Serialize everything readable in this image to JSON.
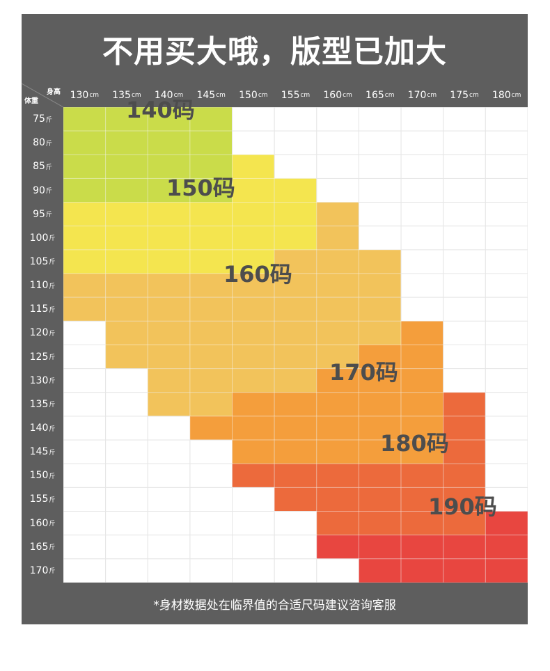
{
  "title": "不用买大哦，版型已加大",
  "corner": {
    "height_label": "身高",
    "weight_label": "体重"
  },
  "height_unit": "cm",
  "weight_unit": "斤",
  "heights": [
    "130",
    "135",
    "140",
    "145",
    "150",
    "155",
    "160",
    "165",
    "170",
    "175",
    "180"
  ],
  "weights": [
    "75",
    "80",
    "85",
    "90",
    "95",
    "100",
    "105",
    "110",
    "115",
    "120",
    "125",
    "130",
    "135",
    "140",
    "145",
    "150",
    "155",
    "160",
    "165",
    "170"
  ],
  "sizes": [
    {
      "label": "140码",
      "color": "#cadc4a"
    },
    {
      "label": "150码",
      "color": "#f4e54f"
    },
    {
      "label": "160码",
      "color": "#f2c35b"
    },
    {
      "label": "170码",
      "color": "#f49e3c"
    },
    {
      "label": "180码",
      "color": "#ec6a3c"
    },
    {
      "label": "190码",
      "color": "#e84640"
    }
  ],
  "size_grid": [
    [
      0,
      0,
      0,
      0,
      -1,
      -1,
      -1,
      -1,
      -1,
      -1,
      -1
    ],
    [
      0,
      0,
      0,
      0,
      -1,
      -1,
      -1,
      -1,
      -1,
      -1,
      -1
    ],
    [
      0,
      0,
      0,
      0,
      1,
      -1,
      -1,
      -1,
      -1,
      -1,
      -1
    ],
    [
      0,
      0,
      0,
      0,
      1,
      1,
      -1,
      -1,
      -1,
      -1,
      -1
    ],
    [
      1,
      1,
      1,
      1,
      1,
      1,
      2,
      -1,
      -1,
      -1,
      -1
    ],
    [
      1,
      1,
      1,
      1,
      1,
      1,
      2,
      -1,
      -1,
      -1,
      -1
    ],
    [
      1,
      1,
      1,
      1,
      1,
      2,
      2,
      2,
      -1,
      -1,
      -1
    ],
    [
      2,
      2,
      2,
      2,
      2,
      2,
      2,
      2,
      -1,
      -1,
      -1
    ],
    [
      2,
      2,
      2,
      2,
      2,
      2,
      2,
      2,
      -1,
      -1,
      -1
    ],
    [
      -1,
      2,
      2,
      2,
      2,
      2,
      2,
      2,
      3,
      -1,
      -1
    ],
    [
      -1,
      2,
      2,
      2,
      2,
      2,
      2,
      3,
      3,
      -1,
      -1
    ],
    [
      -1,
      -1,
      2,
      2,
      2,
      2,
      3,
      3,
      3,
      -1,
      -1
    ],
    [
      -1,
      -1,
      2,
      2,
      3,
      3,
      3,
      3,
      3,
      4,
      -1
    ],
    [
      -1,
      -1,
      -1,
      3,
      3,
      3,
      3,
      3,
      3,
      4,
      -1
    ],
    [
      -1,
      -1,
      -1,
      -1,
      3,
      3,
      3,
      3,
      3,
      4,
      -1
    ],
    [
      -1,
      -1,
      -1,
      -1,
      4,
      4,
      4,
      4,
      4,
      4,
      -1
    ],
    [
      -1,
      -1,
      -1,
      -1,
      -1,
      4,
      4,
      4,
      4,
      4,
      -1
    ],
    [
      -1,
      -1,
      -1,
      -1,
      -1,
      -1,
      4,
      4,
      4,
      4,
      5
    ],
    [
      -1,
      -1,
      -1,
      -1,
      -1,
      -1,
      5,
      5,
      5,
      5,
      5
    ],
    [
      -1,
      -1,
      -1,
      -1,
      -1,
      -1,
      -1,
      5,
      5,
      5,
      5
    ]
  ],
  "footnote": "*身材数据处在临界值的合适尺码建议咨询客服"
}
